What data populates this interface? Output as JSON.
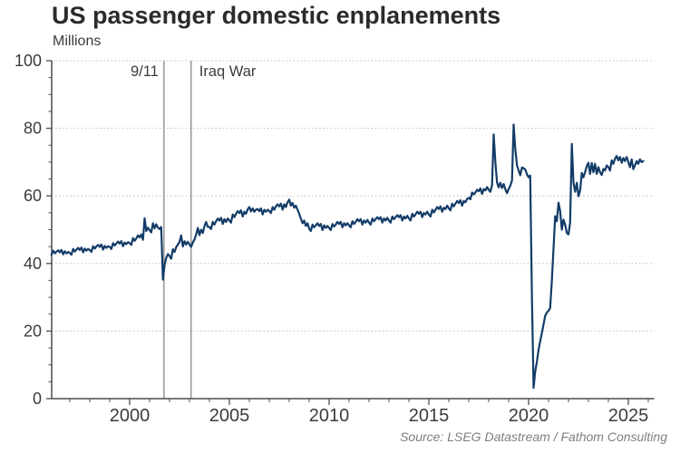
{
  "title": "US passenger domestic enplanements",
  "units_label": "Millions",
  "source": "Source: LSEG Datastream / Fathom Consulting",
  "colors": {
    "line": "#133c68",
    "grid": "#bdbdbd",
    "axis": "#4d4d4d",
    "tick_text": "#3c3c3c",
    "event_line": "#8f8f8f",
    "annotation_text": "#3c3c3c",
    "title_text": "#2b2b2b",
    "source_text": "#7f7f7f"
  },
  "chart_data": {
    "type": "line",
    "title": "US passenger domestic enplanements",
    "ylabel": "Millions",
    "xlabel": "",
    "ylim": [
      0,
      100
    ],
    "xlim": [
      1996,
      2026.3
    ],
    "y_ticks": [
      0,
      20,
      40,
      60,
      80,
      100
    ],
    "y_minor_step": 5,
    "x_ticks": [
      2000,
      2005,
      2010,
      2015,
      2020,
      2025
    ],
    "x_minor_step": 1,
    "grid": "horizontal-dotted",
    "legend": "none",
    "annotations": [
      {
        "label": "9/11",
        "x": 2001.72,
        "side": "left"
      },
      {
        "label": "Iraq War",
        "x": 2003.08,
        "side": "right"
      }
    ],
    "series": [
      {
        "name": "US passenger domestic enplanements (millions)",
        "frequency": "monthly",
        "start_year": 1996,
        "start_month": 2,
        "end_year": 2025,
        "end_month": 10,
        "values": [
          42.6,
          43.8,
          43.0,
          43.5,
          43.9,
          43.3,
          44.0,
          42.7,
          43.6,
          43.0,
          43.4,
          43.1,
          42.6,
          44.3,
          43.5,
          44.1,
          44.6,
          44.0,
          44.7,
          43.3,
          44.4,
          43.8,
          44.3,
          44.0,
          43.4,
          45.1,
          44.4,
          45.0,
          45.5,
          44.9,
          45.6,
          44.1,
          45.2,
          44.6,
          45.1,
          44.9,
          44.3,
          46.0,
          45.3,
          45.9,
          46.5,
          45.9,
          46.6,
          45.1,
          46.2,
          45.7,
          46.3,
          46.0,
          45.5,
          47.5,
          46.7,
          47.4,
          48.3,
          47.7,
          48.6,
          47.0,
          53.4,
          49.6,
          50.6,
          49.8,
          49.2,
          51.9,
          50.4,
          51.6,
          50.6,
          50.2,
          50.8,
          35.2,
          39.5,
          41.6,
          42.8,
          42.2,
          41.4,
          44.2,
          43.4,
          44.8,
          45.6,
          46.4,
          48.3,
          45.0,
          46.6,
          45.6,
          46.4,
          45.6,
          44.9,
          46.2,
          47.1,
          48.5,
          50.5,
          48.4,
          50.0,
          49.0,
          51.0,
          52.3,
          50.8,
          50.8,
          50.2,
          52.3,
          51.5,
          52.5,
          53.3,
          52.7,
          53.5,
          51.7,
          53.1,
          52.3,
          53.3,
          52.7,
          52.1,
          54.5,
          53.7,
          54.7,
          55.5,
          54.9,
          55.7,
          53.9,
          55.3,
          54.7,
          56.0,
          56.7,
          55.4,
          56.3,
          55.3,
          55.9,
          56.1,
          55.5,
          56.3,
          54.5,
          55.9,
          55.3,
          55.9,
          55.5,
          54.9,
          56.7,
          55.9,
          56.9,
          57.5,
          56.9,
          57.7,
          55.9,
          57.5,
          56.7,
          58.1,
          58.9,
          57.1,
          57.9,
          56.5,
          57.1,
          55.9,
          54.7,
          53.3,
          51.9,
          52.7,
          51.1,
          51.9,
          50.3,
          49.6,
          51.5,
          50.7,
          51.3,
          51.9,
          51.1,
          51.7,
          49.9,
          51.3,
          50.5,
          51.1,
          50.5,
          49.9,
          51.7,
          50.9,
          51.5,
          52.3,
          51.7,
          52.3,
          50.7,
          51.9,
          51.3,
          51.9,
          51.3,
          50.7,
          52.5,
          51.7,
          52.3,
          53.1,
          52.5,
          53.1,
          51.5,
          52.7,
          52.1,
          52.9,
          52.1,
          51.5,
          53.3,
          52.5,
          53.1,
          53.7,
          53.1,
          53.7,
          52.1,
          53.3,
          52.7,
          53.5,
          52.7,
          52.1,
          53.9,
          53.1,
          53.7,
          54.3,
          53.7,
          54.3,
          52.7,
          53.9,
          53.3,
          54.1,
          53.3,
          52.7,
          54.7,
          53.9,
          54.5,
          55.3,
          54.7,
          55.3,
          53.7,
          54.9,
          54.5,
          55.3,
          54.5,
          53.9,
          55.9,
          55.1,
          55.9,
          56.7,
          56.1,
          56.9,
          55.3,
          56.5,
          56.1,
          57.1,
          56.3,
          55.7,
          57.7,
          56.9,
          57.7,
          58.5,
          57.9,
          58.7,
          57.1,
          58.5,
          58.1,
          59.1,
          59.4,
          59.0,
          61.0,
          60.4,
          61.0,
          61.8,
          61.4,
          62.2,
          60.6,
          62.0,
          61.6,
          62.6,
          61.8,
          61.2,
          63.2,
          78.2,
          70.2,
          64.0,
          62.5,
          63.9,
          62.3,
          63.5,
          62.0,
          60.8,
          62.0,
          63.0,
          64.5,
          81.1,
          74.0,
          69.0,
          67.5,
          66.1,
          68.4,
          68.2,
          67.8,
          66.4,
          65.5,
          66.0,
          30.0,
          3.2,
          8.0,
          11.0,
          14.5,
          17.0,
          19.5,
          22.0,
          24.5,
          25.5,
          26.0,
          26.8,
          35.0,
          44.5,
          54.0,
          52.5,
          58.0,
          55.5,
          50.0,
          53.0,
          51.5,
          49.0,
          48.6,
          52.0,
          75.4,
          64.0,
          61.2,
          63.9,
          59.9,
          61.5,
          66.8,
          65.5,
          67.0,
          68.8,
          69.8,
          66.5,
          69.7,
          67.0,
          69.5,
          66.5,
          68.5,
          67.0,
          66.2,
          68.0,
          67.5,
          69.0,
          68.5,
          67.5,
          70.5,
          69.5,
          71.0,
          71.8,
          70.5,
          71.5,
          69.8,
          71.2,
          70.3,
          71.5,
          70.0,
          68.5,
          70.8,
          67.9,
          69.0,
          70.3,
          69.5,
          70.8,
          70.0,
          70.3
        ]
      }
    ]
  }
}
